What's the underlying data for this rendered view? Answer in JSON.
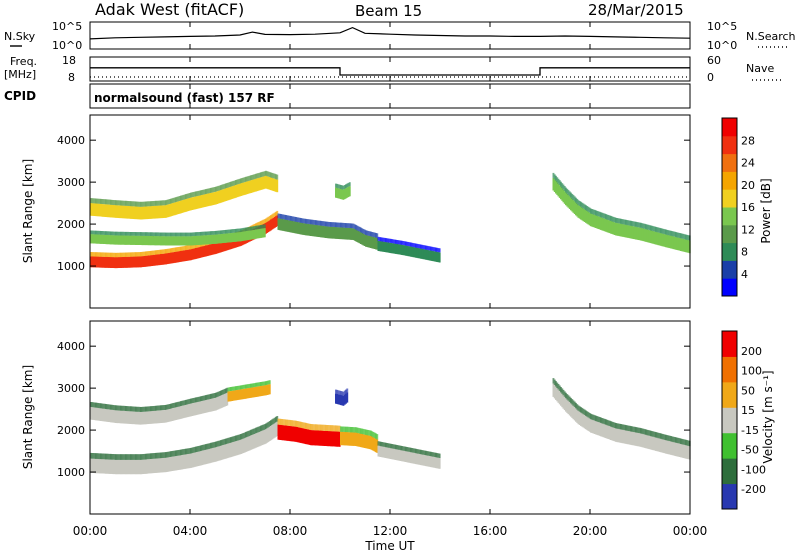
{
  "header": {
    "station": "Adak West (fitACF)",
    "beam": "Beam 15",
    "date": "28/Mar/2015"
  },
  "labels": {
    "nsky": "N.Sky",
    "nsearch": "N.Search",
    "freq": "Freq.",
    "mhz": "[MHz]",
    "cpid": "CPID",
    "nave": "Nave",
    "cpid_name": "normalsound (fast) 157 RF",
    "sci_1e5": "10^5",
    "sci_1e0": "10^0"
  },
  "colors": {
    "power": [
      "#0000ff",
      "#1a3fa8",
      "#2e8b57",
      "#5a9a4a",
      "#7ac74f",
      "#f0d020",
      "#f5a500",
      "#f07010",
      "#f03010",
      "#f00000"
    ],
    "velocity": [
      "#2838b0",
      "#2e6e3c",
      "#40c030",
      "#c8c8c0",
      "#f0a818",
      "#f07000",
      "#f00000"
    ],
    "ground": "#c8c8c0"
  },
  "chart_data": [
    {
      "type": "line",
      "panel": "noise",
      "x": [
        0,
        1,
        2,
        3,
        4,
        5,
        6,
        6.5,
        7,
        8,
        9,
        10,
        10.5,
        11,
        12,
        13,
        14,
        15,
        16,
        17,
        18,
        19,
        20,
        21,
        22,
        23,
        24
      ],
      "series": [
        {
          "name": "N.Sky",
          "values": [
            4.5,
            5.0,
            5.2,
            5.4,
            5.6,
            5.8,
            6.2,
            7.5,
            6.5,
            6.4,
            6.6,
            7.2,
            9.5,
            7.0,
            6.6,
            6.2,
            6.0,
            5.8,
            5.8,
            5.6,
            5.6,
            5.8,
            5.6,
            5.4,
            5.2,
            5.0,
            4.8
          ]
        }
      ],
      "ylim": [
        0,
        12
      ],
      "xlim": [
        0,
        24
      ]
    },
    {
      "type": "line",
      "panel": "frequency",
      "x": [
        0,
        10,
        10,
        18,
        18,
        24
      ],
      "series": [
        {
          "name": "Freq.",
          "values": [
            13.5,
            13.5,
            10.5,
            10.5,
            13.5,
            13.5
          ]
        },
        {
          "name": "Nave",
          "values": [
            10,
            10,
            10,
            10,
            10,
            10
          ]
        }
      ],
      "ylim": [
        8,
        18
      ],
      "yticks": [
        "18",
        "8"
      ],
      "right_yticks": [
        "60",
        "0"
      ],
      "xlim": [
        0,
        24
      ]
    },
    {
      "type": "heatmap",
      "panel": "power",
      "xlabel": "",
      "ylabel": "Slant Range [km]",
      "xlim": [
        0,
        24
      ],
      "ylim": [
        0,
        4600
      ],
      "yticks": [
        "4000",
        "3000",
        "2000",
        "1000"
      ],
      "colorbar_label": "Power [dB]",
      "colorbar_ticks": [
        "28",
        "24",
        "20",
        "16",
        "12",
        "8",
        "4"
      ],
      "bands": [
        {
          "t": [
            0,
            1,
            2,
            3,
            4,
            5,
            6,
            7,
            7.5
          ],
          "r": [
            2350,
            2300,
            2260,
            2300,
            2480,
            2620,
            2820,
            3000,
            2900
          ],
          "w": 150,
          "level": 5
        },
        {
          "t": [
            0,
            1,
            2,
            3,
            4,
            5,
            6,
            7,
            7.5
          ],
          "r": [
            1100,
            1080,
            1100,
            1170,
            1270,
            1420,
            1610,
            1900,
            2100
          ],
          "w": 130,
          "level": 8
        },
        {
          "t": [
            0,
            1,
            2,
            3,
            4,
            5,
            6,
            7
          ],
          "r": [
            1650,
            1620,
            1610,
            1600,
            1600,
            1640,
            1700,
            1800
          ],
          "w": 110,
          "level": 4
        },
        {
          "t": [
            7.5,
            8.5,
            9.5,
            10.5,
            11,
            11.5
          ],
          "r": [
            2000,
            1880,
            1800,
            1760,
            1600,
            1520
          ],
          "w": 140,
          "level": 3
        },
        {
          "t": [
            11.5,
            12,
            12.5,
            13,
            13.5,
            14
          ],
          "r": [
            1480,
            1430,
            1380,
            1320,
            1260,
            1200
          ],
          "w": 120,
          "level": 2
        },
        {
          "t": [
            18.5,
            19,
            19.5,
            20,
            21,
            22,
            23,
            24
          ],
          "r": [
            2950,
            2600,
            2300,
            2100,
            1880,
            1760,
            1600,
            1450
          ],
          "w": 150,
          "level": 4
        },
        {
          "t": [
            9.8,
            10.1,
            10.4
          ],
          "r": [
            2750,
            2700,
            2800
          ],
          "w": 120,
          "level": 4
        }
      ]
    },
    {
      "type": "heatmap",
      "panel": "velocity",
      "xlabel": "Time UT",
      "ylabel": "Slant Range [km]",
      "xlim": [
        0,
        24
      ],
      "ylim": [
        0,
        4600
      ],
      "xticks": [
        "00:00",
        "04:00",
        "08:00",
        "12:00",
        "16:00",
        "20:00",
        "00:00"
      ],
      "yticks": [
        "4000",
        "3000",
        "2000",
        "1000"
      ],
      "colorbar_label": "Velocity [m s⁻¹]",
      "colorbar_ticks": [
        "200",
        "100",
        "50",
        "15",
        "-15",
        "-50",
        "-100",
        "-200"
      ],
      "bands": [
        {
          "t": [
            0,
            1,
            2,
            3,
            4,
            5,
            5.5
          ],
          "r": [
            2400,
            2320,
            2280,
            2330,
            2480,
            2620,
            2750
          ],
          "w": 150,
          "level": 3
        },
        {
          "t": [
            0,
            1,
            2,
            3,
            4,
            5,
            6,
            7,
            7.5
          ],
          "r": [
            1150,
            1120,
            1120,
            1170,
            1270,
            1420,
            1600,
            1850,
            2050
          ],
          "w": 170,
          "level": 3
        },
        {
          "t": [
            5.5,
            6.5,
            7,
            7.2
          ],
          "r": [
            2800,
            2900,
            2950,
            2980
          ],
          "w": 120,
          "level": 4
        },
        {
          "t": [
            7.5,
            8.2,
            8.8,
            9.4,
            10
          ],
          "r": [
            1950,
            1900,
            1820,
            1800,
            1780
          ],
          "w": 180,
          "level": 6
        },
        {
          "t": [
            10,
            10.6,
            11.2,
            11.5
          ],
          "r": [
            1800,
            1780,
            1700,
            1600
          ],
          "w": 160,
          "level": 4
        },
        {
          "t": [
            11.5,
            12,
            12.5,
            13,
            13.5,
            14
          ],
          "r": [
            1500,
            1440,
            1380,
            1320,
            1260,
            1200
          ],
          "w": 130,
          "level": 3
        },
        {
          "t": [
            18.5,
            19,
            19.5,
            20,
            21,
            22,
            23,
            24
          ],
          "r": [
            2950,
            2600,
            2300,
            2100,
            1880,
            1760,
            1600,
            1450
          ],
          "w": 160,
          "level": 3
        },
        {
          "t": [
            9.8,
            10.1,
            10.3
          ],
          "r": [
            2750,
            2700,
            2800
          ],
          "w": 120,
          "level": 0
        }
      ]
    }
  ]
}
